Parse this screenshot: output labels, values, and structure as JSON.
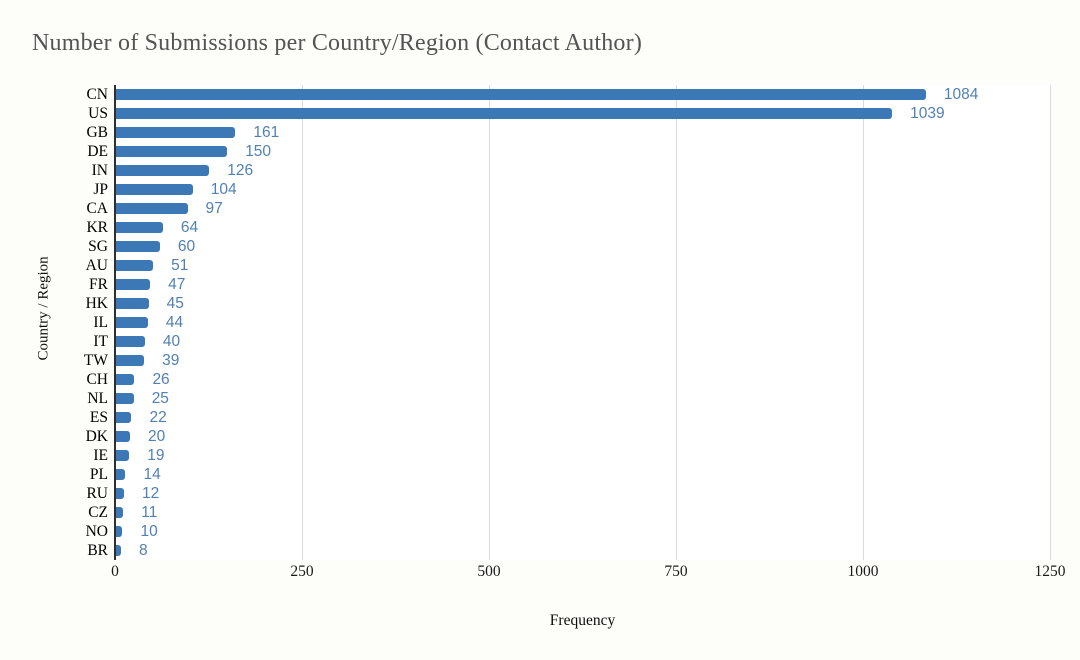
{
  "chart_data": {
    "type": "bar",
    "orientation": "horizontal",
    "title": "Number of Submissions per Country/Region (Contact Author)",
    "categories": [
      "CN",
      "US",
      "GB",
      "DE",
      "IN",
      "JP",
      "CA",
      "KR",
      "SG",
      "AU",
      "FR",
      "HK",
      "IL",
      "IT",
      "TW",
      "CH",
      "NL",
      "ES",
      "DK",
      "IE",
      "PL",
      "RU",
      "CZ",
      "NO",
      "BR"
    ],
    "values": [
      1084,
      1039,
      161,
      150,
      126,
      104,
      97,
      64,
      60,
      51,
      47,
      45,
      44,
      40,
      39,
      26,
      25,
      22,
      20,
      19,
      14,
      12,
      11,
      10,
      8
    ],
    "xlabel": "Frequency",
    "ylabel": "Country / Region",
    "xlim": [
      0,
      1250
    ],
    "x_ticks": [
      0,
      250,
      500,
      750,
      1000,
      1250
    ],
    "grid": "vertical-only",
    "legend": "none",
    "value_labels": "shown-right-of-bar",
    "colors": {
      "bar": "#3c78b5",
      "value_label": "#5180b5",
      "title": "#545454",
      "gridline": "#d9d9d9",
      "axis_line": "#2f2f2f"
    }
  }
}
